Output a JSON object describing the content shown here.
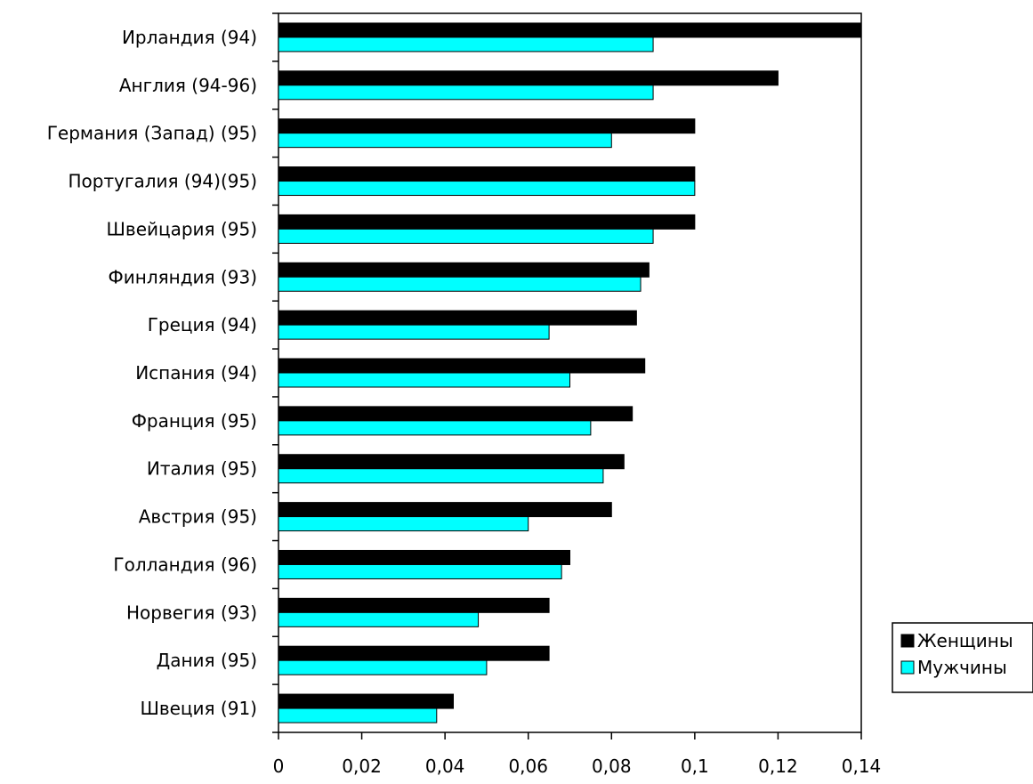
{
  "chart_data": {
    "type": "bar",
    "orientation": "horizontal",
    "categories": [
      "Ирландия (94)",
      "Англия (94-96)",
      "Германия (Запад) (95)",
      "Португалия (94)(95)",
      "Швейцария (95)",
      "Финляндия (93)",
      "Греция (94)",
      "Испания (94)",
      "Франция (95)",
      "Италия (95)",
      "Австрия (95)",
      "Голландия (96)",
      "Норвегия (93)",
      "Дания (95)",
      "Швеция (91)"
    ],
    "series": [
      {
        "name": "Женщины",
        "color": "#000000",
        "values": [
          0.14,
          0.12,
          0.1,
          0.1,
          0.1,
          0.089,
          0.086,
          0.088,
          0.085,
          0.083,
          0.08,
          0.07,
          0.065,
          0.065,
          0.042
        ]
      },
      {
        "name": "Мужчины",
        "color": "#00ffff",
        "values": [
          0.09,
          0.09,
          0.08,
          0.1,
          0.09,
          0.087,
          0.065,
          0.07,
          0.075,
          0.078,
          0.06,
          0.068,
          0.048,
          0.05,
          0.038
        ]
      }
    ],
    "xlim": [
      0,
      0.14
    ],
    "xticks": [
      "0",
      "0,02",
      "0,04",
      "0,06",
      "0,08",
      "0,1",
      "0,12",
      "0,14"
    ],
    "xtick_values": [
      0,
      0.02,
      0.04,
      0.06,
      0.08,
      0.1,
      0.12,
      0.14
    ],
    "grid": false,
    "legend_position": "bottom-right",
    "title": "",
    "xlabel": "",
    "ylabel": ""
  }
}
